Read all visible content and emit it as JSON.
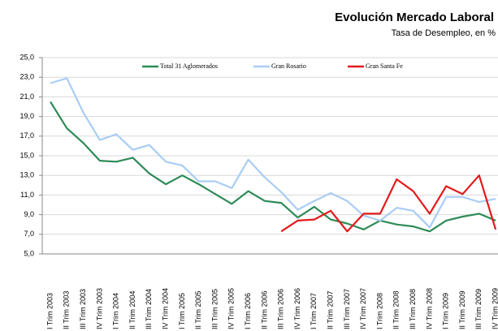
{
  "chart_data": {
    "type": "line",
    "title": "Evolución Mercado Laboral",
    "subtitle": "Tasa de Desempleo, en %",
    "categories": [
      "I Trim 2003",
      "II Trim 2003",
      "III Trim 2003",
      "IV Trim 2003",
      "I Trim 2004",
      "II Trim 2004",
      "III Trim 2004",
      "IV Trim 2004",
      "I Trim 2005",
      "II Trim 2005",
      "III Trim 2005",
      "IV Trim 2005",
      "I Trim 2006",
      "II Trim 2006",
      "III Trim 2006",
      "IV Trim 2006",
      "I Trim 2007",
      "II Trim 2007",
      "III Trim 2007",
      "IV Trim 2007",
      "I Trim 2008",
      "II Trim 2008",
      "III Trim 2008",
      "IV Trim 2008",
      "I Trim 2009",
      "II Trim 2009",
      "III Trim 2009",
      "IV Trim 2009"
    ],
    "series": [
      {
        "name": "Total 31 Aglomerados",
        "color": "#2e8b57",
        "values": [
          20.5,
          17.8,
          16.3,
          14.5,
          14.4,
          14.8,
          13.2,
          12.1,
          13.0,
          12.1,
          11.1,
          10.1,
          11.4,
          10.4,
          10.2,
          8.7,
          9.8,
          8.5,
          8.1,
          7.5,
          8.4,
          8.0,
          7.8,
          7.3,
          8.4,
          8.8,
          9.1,
          8.4
        ]
      },
      {
        "name": "Gran Rosario",
        "color": "#a9cdf5",
        "values": [
          22.4,
          22.9,
          19.4,
          16.6,
          17.2,
          15.6,
          16.1,
          14.4,
          14.0,
          12.4,
          12.4,
          11.7,
          14.6,
          12.8,
          11.3,
          9.5,
          10.4,
          11.2,
          10.4,
          8.9,
          8.4,
          9.7,
          9.4,
          7.7,
          10.8,
          10.8,
          10.3,
          10.6
        ]
      },
      {
        "name": "Gran Santa Fe",
        "color": "#e31a1c",
        "values": [
          null,
          null,
          null,
          null,
          null,
          null,
          null,
          null,
          null,
          null,
          null,
          null,
          null,
          null,
          7.3,
          8.4,
          8.5,
          9.4,
          7.3,
          9.1,
          9.1,
          12.6,
          11.4,
          9.1,
          11.9,
          11.1,
          13.0,
          7.5
        ]
      }
    ],
    "ylim": [
      5,
      25
    ],
    "yticks": [
      {
        "value": 5,
        "label": "5,0"
      },
      {
        "value": 7,
        "label": "7,0"
      },
      {
        "value": 9,
        "label": "9,0"
      },
      {
        "value": 11,
        "label": "11,0"
      },
      {
        "value": 13,
        "label": "13,0"
      },
      {
        "value": 15,
        "label": "15,0"
      },
      {
        "value": 17,
        "label": "17,0"
      },
      {
        "value": 19,
        "label": "19,0"
      },
      {
        "value": 21,
        "label": "21,0"
      },
      {
        "value": 23,
        "label": "23,0"
      },
      {
        "value": 25,
        "label": "25,0"
      }
    ],
    "grid": true,
    "legend": "top"
  }
}
